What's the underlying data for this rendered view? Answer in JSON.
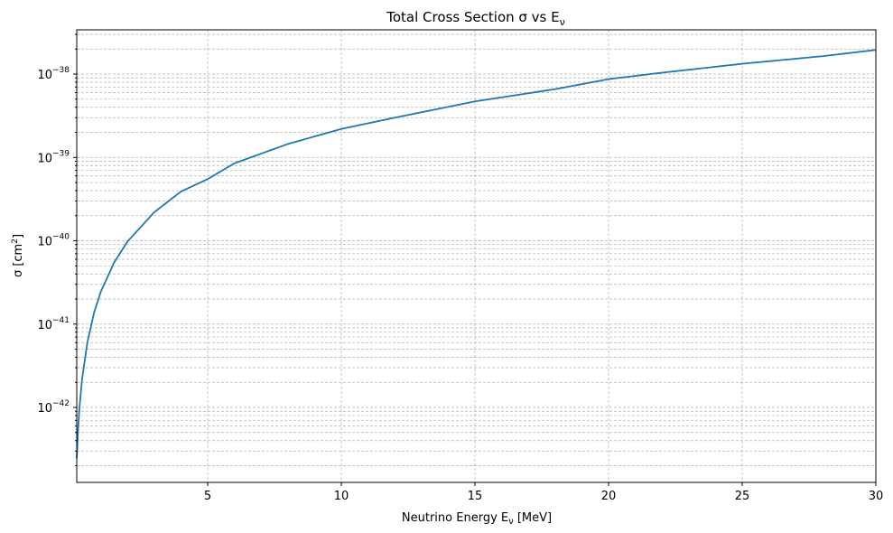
{
  "chart_data": {
    "type": "line",
    "title": "Total Cross Section σ vs E",
    "title_subscript": "ν",
    "xlabel": "Neutrino Energy E",
    "xlabel_subscript": "ν",
    "xlabel_unit": " [MeV]",
    "ylabel": "σ [cm",
    "ylabel_sup": "2",
    "ylabel_close": "]",
    "xlim": [
      0.1,
      30
    ],
    "ylim": [
      1.26e-43,
      3.4e-38
    ],
    "yscale": "log",
    "grid": true,
    "x_ticks": [
      5,
      10,
      15,
      20,
      25,
      30
    ],
    "x_tick_labels": [
      "5",
      "10",
      "15",
      "20",
      "25",
      "30"
    ],
    "y_ticks_exp": [
      -42,
      -41,
      -40,
      -39,
      -38
    ],
    "y_tick_labels": [
      "10",
      "10",
      "10",
      "10",
      "10"
    ],
    "y_tick_exps": [
      "−42",
      "−41",
      "−40",
      "−39",
      "−38"
    ],
    "series": [
      {
        "color": "#1f77b4",
        "x": [
          0.1,
          0.15,
          0.2,
          0.3,
          0.5,
          0.75,
          1,
          1.5,
          2,
          3,
          4,
          5,
          6,
          8,
          10,
          12,
          15,
          18,
          20,
          22,
          25,
          28,
          30
        ],
        "y": [
          2.45e-43,
          5.5e-43,
          9.8e-43,
          2.2e-42,
          6.1e-42,
          1.38e-41,
          2.45e-41,
          5.5e-41,
          9.8e-41,
          2.2e-40,
          3.9e-40,
          5.5e-40,
          8.5e-40,
          1.45e-39,
          2.2e-39,
          3e-39,
          4.7e-39,
          6.6e-39,
          8.7e-39,
          1.04e-38,
          1.33e-38,
          1.64e-38,
          1.95e-38
        ]
      }
    ]
  }
}
